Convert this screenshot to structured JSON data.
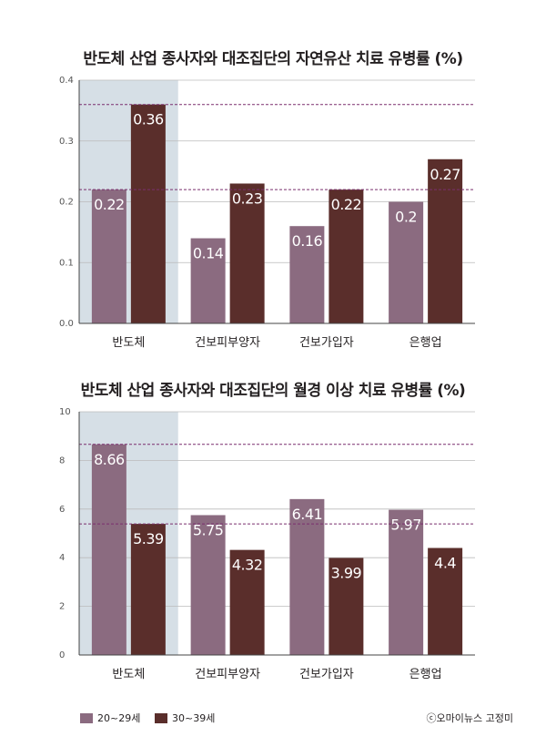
{
  "colors": {
    "c20": "#8b6b80",
    "c30": "#5a2e2b",
    "highlight": "#d6dfe6",
    "dashed": "#7a2e6e",
    "grid": "#bbbbbb"
  },
  "legend": [
    {
      "label": "20~29세",
      "color": "#8b6b80"
    },
    {
      "label": "30~39세",
      "color": "#5a2e2b"
    }
  ],
  "credit": "ⓒ오마이뉴스 고정미",
  "chart_data": [
    {
      "type": "bar",
      "title": "반도체 산업 종사자와 대조집단의 자연유산 치료 유병률 (%)",
      "categories": [
        "반도체",
        "건보피부양자",
        "건보가입자",
        "은행업"
      ],
      "series": [
        {
          "name": "20~29세",
          "values": [
            0.22,
            0.14,
            0.16,
            0.2
          ],
          "labels": [
            "0.22",
            "0.14",
            "0.16",
            "0.2"
          ]
        },
        {
          "name": "30~39세",
          "values": [
            0.36,
            0.23,
            0.22,
            0.27
          ],
          "labels": [
            "0.36",
            "0.23",
            "0.22",
            "0.27"
          ]
        }
      ],
      "ylim": [
        0,
        0.4
      ],
      "yticks": [
        "0.0",
        "0.1",
        "0.2",
        "0.3",
        "0.4"
      ],
      "reference_lines": [
        0.36,
        0.22
      ],
      "highlight_category": "반도체",
      "grid": true
    },
    {
      "type": "bar",
      "title": "반도체 산업 종사자와 대조집단의 월경 이상 치료 유병률 (%)",
      "categories": [
        "반도체",
        "건보피부양자",
        "건보가입자",
        "은행업"
      ],
      "series": [
        {
          "name": "20~29세",
          "values": [
            8.66,
            5.75,
            6.41,
            5.97
          ],
          "labels": [
            "8.66",
            "5.75",
            "6.41",
            "5.97"
          ]
        },
        {
          "name": "30~39세",
          "values": [
            5.39,
            4.32,
            3.99,
            4.4
          ],
          "labels": [
            "5.39",
            "4.32",
            "3.99",
            "4.4"
          ]
        }
      ],
      "ylim": [
        0,
        10
      ],
      "yticks": [
        "0",
        "2",
        "4",
        "6",
        "8",
        "10"
      ],
      "reference_lines": [
        8.66,
        5.39
      ],
      "highlight_category": "반도체",
      "grid": true
    }
  ]
}
